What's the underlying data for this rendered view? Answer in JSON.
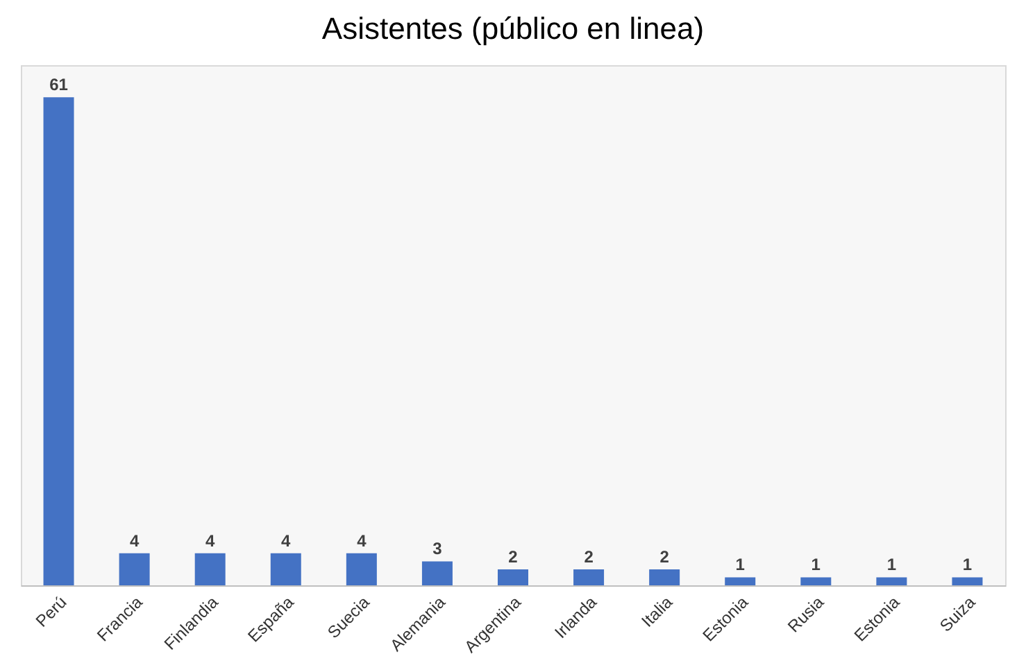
{
  "chart_data": {
    "type": "bar",
    "title": "Asistentes (público en linea)",
    "categories": [
      "Perú",
      "Francia",
      "Finlandia",
      "España",
      "Suecia",
      "Alemania",
      "Argentina",
      "Irlanda",
      "Italia",
      "Estonia",
      "Rusia",
      "Estonia",
      "Suiza"
    ],
    "values": [
      61,
      4,
      4,
      4,
      4,
      3,
      2,
      2,
      2,
      1,
      1,
      1,
      1
    ],
    "color": "#4472c4",
    "data_labels": true,
    "grid": false
  }
}
